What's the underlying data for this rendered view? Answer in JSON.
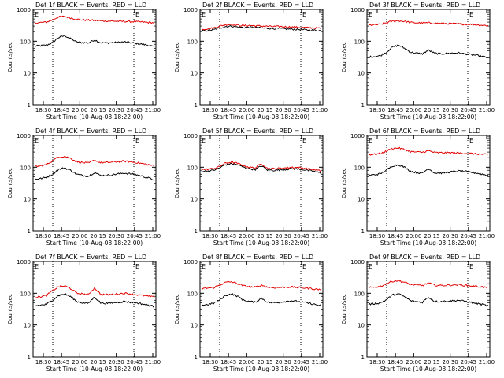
{
  "chart_data": {
    "type": "line",
    "ylabel": "Counts/sec",
    "xlabel": "Start Time (10-Aug-08 18:22:00)",
    "y_scale": "log",
    "ylim": [
      1,
      1000
    ],
    "y_ticks": [
      "1",
      "10",
      "100",
      "1000"
    ],
    "x_ticks": [
      "18:30",
      "18:45",
      "20:00",
      "20:15",
      "20:30",
      "20:45",
      "21:00"
    ],
    "marker_label": "E",
    "series_colors": {
      "events": "#000000",
      "lld": "#e00000"
    },
    "panels": [
      {
        "title": "Det 1f BLACK = Events, RED = LLD",
        "series": [
          {
            "color": "#000000",
            "values": [
              70,
              72,
              75,
              90,
              130,
              150,
              120,
              95,
              90,
              88,
              110,
              90,
              88,
              90,
              92,
              95,
              90,
              85,
              80,
              75,
              65
            ]
          },
          {
            "color": "#e00000",
            "values": [
              380,
              385,
              400,
              470,
              580,
              600,
              540,
              490,
              470,
              460,
              450,
              440,
              435,
              430,
              425,
              420,
              415,
              410,
              400,
              390,
              380
            ]
          }
        ]
      },
      {
        "title": "Det 2f BLACK = Events, RED = LLD",
        "series": [
          {
            "color": "#000000",
            "values": [
              210,
              215,
              230,
              260,
              290,
              300,
              280,
              270,
              275,
              270,
              260,
              255,
              250,
              250,
              245,
              240,
              235,
              230,
              225,
              220,
              215
            ]
          },
          {
            "color": "#e00000",
            "values": [
              240,
              245,
              260,
              300,
              330,
              340,
              320,
              310,
              315,
              305,
              300,
              295,
              290,
              290,
              285,
              280,
              275,
              270,
              265,
              260,
              255
            ]
          }
        ]
      },
      {
        "title": "Det 3f BLACK = Events, RED = LLD",
        "series": [
          {
            "color": "#000000",
            "values": [
              32,
              33,
              35,
              45,
              65,
              75,
              60,
              45,
              42,
              40,
              52,
              42,
              40,
              41,
              42,
              43,
              40,
              38,
              36,
              33,
              30
            ]
          },
          {
            "color": "#e00000",
            "values": [
              320,
              325,
              340,
              380,
              430,
              440,
              420,
              390,
              380,
              375,
              380,
              370,
              365,
              360,
              355,
              350,
              345,
              340,
              330,
              320,
              310
            ]
          }
        ]
      },
      {
        "title": "Det 4f BLACK = Events, RED = LLD",
        "series": [
          {
            "color": "#000000",
            "values": [
              42,
              44,
              48,
              60,
              85,
              95,
              80,
              60,
              55,
              52,
              68,
              55,
              55,
              58,
              62,
              65,
              62,
              58,
              52,
              46,
              40
            ]
          },
          {
            "color": "#e00000",
            "values": [
              105,
              110,
              120,
              160,
              210,
              220,
              190,
              150,
              140,
              135,
              165,
              140,
              140,
              145,
              150,
              155,
              148,
              140,
              130,
              120,
              110
            ]
          }
        ]
      },
      {
        "title": "Det 5f BLACK = Events, RED = LLD",
        "series": [
          {
            "color": "#000000",
            "values": [
              75,
              76,
              80,
              95,
              120,
              130,
              120,
              100,
              90,
              85,
              110,
              82,
              80,
              82,
              85,
              90,
              88,
              84,
              78,
              72,
              65
            ]
          },
          {
            "color": "#e00000",
            "values": [
              85,
              86,
              90,
              105,
              135,
              145,
              132,
              112,
              100,
              95,
              130,
              92,
              90,
              92,
              95,
              100,
              98,
              94,
              88,
              82,
              75
            ]
          }
        ]
      },
      {
        "title": "Det 6f BLACK = Events, RED = LLD",
        "series": [
          {
            "color": "#000000",
            "values": [
              55,
              58,
              62,
              80,
              110,
              120,
              100,
              75,
              68,
              65,
              90,
              66,
              65,
              68,
              72,
              76,
              74,
              70,
              65,
              60,
              55
            ]
          },
          {
            "color": "#e00000",
            "values": [
              250,
              255,
              270,
              320,
              390,
              400,
              360,
              310,
              300,
              295,
              330,
              290,
              285,
              285,
              285,
              280,
              275,
              270,
              260,
              255,
              250
            ]
          }
        ]
      },
      {
        "title": "Det 7f BLACK = Events, RED = LLD",
        "series": [
          {
            "color": "#000000",
            "values": [
              40,
              42,
              45,
              60,
              85,
              95,
              78,
              55,
              50,
              48,
              75,
              50,
              48,
              50,
              52,
              55,
              52,
              50,
              46,
              42,
              38
            ]
          },
          {
            "color": "#e00000",
            "values": [
              75,
              78,
              85,
              120,
              160,
              170,
              140,
              100,
              95,
              90,
              145,
              92,
              90,
              92,
              96,
              100,
              95,
              90,
              85,
              80,
              75
            ]
          }
        ]
      },
      {
        "title": "Det 8f BLACK = Events, RED = LLD",
        "series": [
          {
            "color": "#000000",
            "values": [
              42,
              44,
              48,
              60,
              85,
              95,
              80,
              60,
              55,
              52,
              70,
              52,
              50,
              52,
              55,
              58,
              55,
              52,
              48,
              44,
              40
            ]
          },
          {
            "color": "#e00000",
            "values": [
              140,
              145,
              150,
              180,
              220,
              230,
              200,
              170,
              160,
              155,
              180,
              155,
              150,
              152,
              155,
              158,
              152,
              148,
              142,
              135,
              130
            ]
          }
        ]
      },
      {
        "title": "Det 9f BLACK = Events, RED = LLD",
        "series": [
          {
            "color": "#000000",
            "values": [
              45,
              47,
              50,
              62,
              88,
              95,
              78,
              58,
              54,
              52,
              75,
              55,
              55,
              56,
              58,
              60,
              56,
              52,
              48,
              44,
              40
            ]
          },
          {
            "color": "#e00000",
            "values": [
              150,
              155,
              165,
              200,
              240,
              250,
              220,
              190,
              180,
              175,
              210,
              180,
              175,
              178,
              182,
              185,
              178,
              172,
              165,
              158,
              150
            ]
          }
        ]
      }
    ]
  }
}
